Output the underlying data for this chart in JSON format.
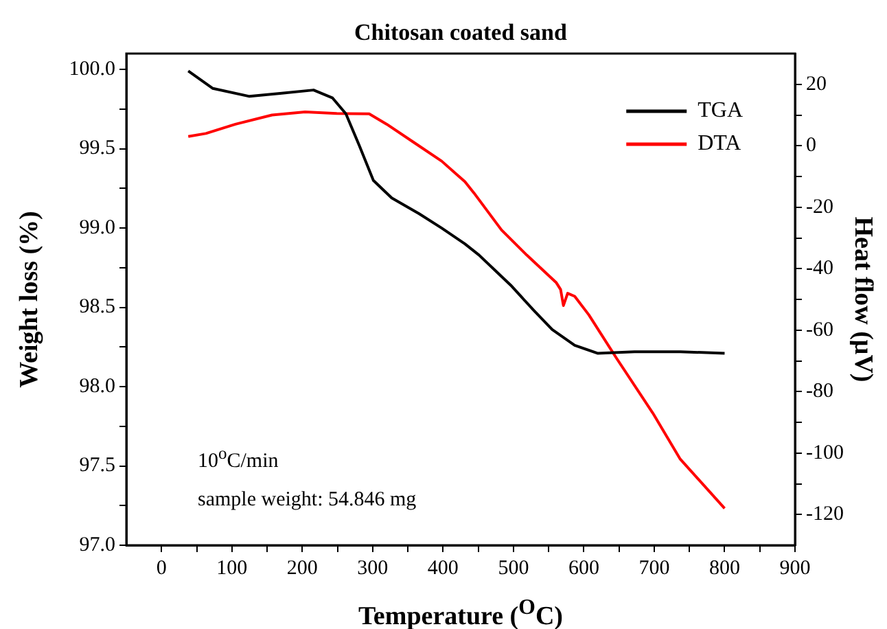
{
  "chart_data": {
    "type": "line",
    "title": "Chitosan coated sand",
    "xlabel": "Temperature ($^{O}$C)",
    "ylabel": "Weight loss (%)",
    "y2label": "Heat flow (μV)",
    "annotations": [
      "10$^{o}$C/min",
      "sample weight: 54.846 mg"
    ],
    "xlim": [
      -50,
      900
    ],
    "xticks": [
      0,
      {
        "value": 50,
        "label": null
      },
      100,
      {
        "value": 150,
        "label": null
      },
      200,
      {
        "value": 250,
        "label": null
      },
      300,
      {
        "value": 350,
        "label": null
      },
      400,
      {
        "value": 450,
        "label": null
      },
      500,
      {
        "value": 550,
        "label": null
      },
      600,
      {
        "value": 650,
        "label": null
      },
      700,
      {
        "value": 750,
        "label": null
      },
      800,
      {
        "value": 850,
        "label": null
      },
      900
    ],
    "ylim": [
      97.0,
      100.1
    ],
    "yticks": [
      {
        "value": 97,
        "label": "97.0"
      },
      {
        "value": 97.25,
        "label": null
      },
      {
        "value": 97.5,
        "label": "97.5"
      },
      {
        "value": 97.75,
        "label": null
      },
      {
        "value": 98,
        "label": "98.0"
      },
      {
        "value": 98.25,
        "label": null
      },
      {
        "value": 98.5,
        "label": "98.5"
      },
      {
        "value": 98.75,
        "label": null
      },
      {
        "value": 99,
        "label": "99.0"
      },
      {
        "value": 99.25,
        "label": null
      },
      {
        "value": 99.5,
        "label": "99.5"
      },
      {
        "value": 99.75,
        "label": null
      },
      {
        "value": 100,
        "label": "100.0"
      }
    ],
    "y2lim": [
      -130,
      30
    ],
    "y2ticks": [
      -120,
      {
        "value": -110,
        "label": null
      },
      -100,
      {
        "value": -90,
        "label": null
      },
      -80,
      {
        "value": -70,
        "label": null
      },
      -60,
      {
        "value": -50,
        "label": null
      },
      -40,
      {
        "value": -30,
        "label": null
      },
      -20,
      {
        "value": -10,
        "label": null
      },
      0,
      {
        "value": 10,
        "label": null
      },
      20
    ],
    "grid": false,
    "legend": "top right",
    "marker": "none",
    "line_style": "solid",
    "series": [
      {
        "name": "TGA",
        "color": "#000000",
        "x": [
          38,
          73,
          125,
          171,
          216,
          243,
          262,
          281,
          301,
          327,
          366,
          398,
          431,
          451,
          477,
          496,
          529,
          555,
          587,
          620,
          672,
          737,
          800
        ],
        "values": [
          99.99,
          99.88,
          99.83,
          99.85,
          99.87,
          99.82,
          99.72,
          99.52,
          99.3,
          99.19,
          99.09,
          99.0,
          98.9,
          98.83,
          98.72,
          98.64,
          98.48,
          98.36,
          98.26,
          98.21,
          98.22,
          98.22,
          98.21
        ]
      },
      {
        "name": "DTA",
        "color": "#ff0000",
        "axis": "y2",
        "x": [
          38,
          63,
          105,
          157,
          204,
          249,
          295,
          320,
          359,
          398,
          431,
          444,
          483,
          519,
          561,
          567,
          571,
          577,
          587,
          607,
          646,
          698,
          737,
          800
        ],
        "values": [
          3,
          4,
          7,
          10,
          11,
          10.5,
          10.4,
          7,
          1,
          -5,
          -11.7,
          -15.4,
          -27.4,
          -35.6,
          -44.6,
          -46.8,
          -52,
          -48,
          -49,
          -55,
          -69,
          -87,
          -102,
          -118
        ]
      }
    ]
  }
}
